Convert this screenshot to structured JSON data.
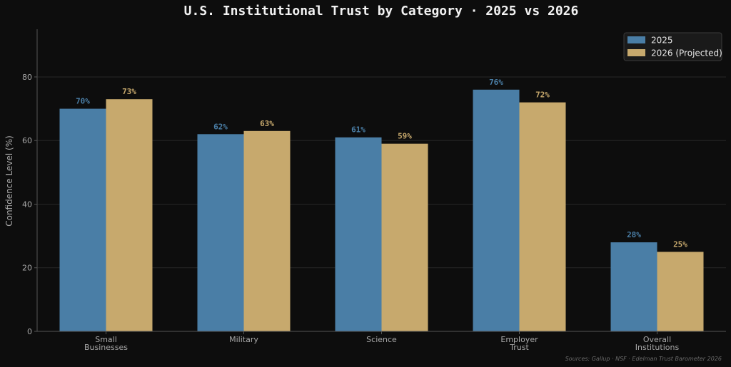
{
  "chart_data": {
    "type": "bar",
    "title": "U.S. Institutional Trust by Category · 2025 vs 2026",
    "ylabel": "Confidence Level (%)",
    "xlabel": "",
    "ylim": [
      0,
      95
    ],
    "yticks": [
      0,
      20,
      40,
      60,
      80
    ],
    "grid": true,
    "legend_position": "top-right",
    "categories": [
      [
        "Small",
        "Businesses"
      ],
      [
        "Military"
      ],
      [
        "Science"
      ],
      [
        "Employer",
        "Trust"
      ],
      [
        "Overall",
        "Institutions"
      ]
    ],
    "series": [
      {
        "name": "2025",
        "values": [
          70,
          62,
          61,
          76,
          28
        ],
        "color": "#4a7ea6",
        "labels": [
          "70%",
          "62%",
          "61%",
          "76%",
          "28%"
        ]
      },
      {
        "name": "2026 (Projected)",
        "values": [
          73,
          63,
          59,
          72,
          25
        ],
        "color": "#c7a96d",
        "labels": [
          "73%",
          "63%",
          "59%",
          "72%",
          "25%"
        ]
      }
    ],
    "source_note": "Sources: Gallup · NSF · Edelman Trust Barometer 2026"
  },
  "colors": {
    "background": "#0d0d0d",
    "grid": "#262626",
    "axis": "#555555",
    "legend_bg": "#1a1a1a",
    "legend_border": "#3a3a3a"
  }
}
